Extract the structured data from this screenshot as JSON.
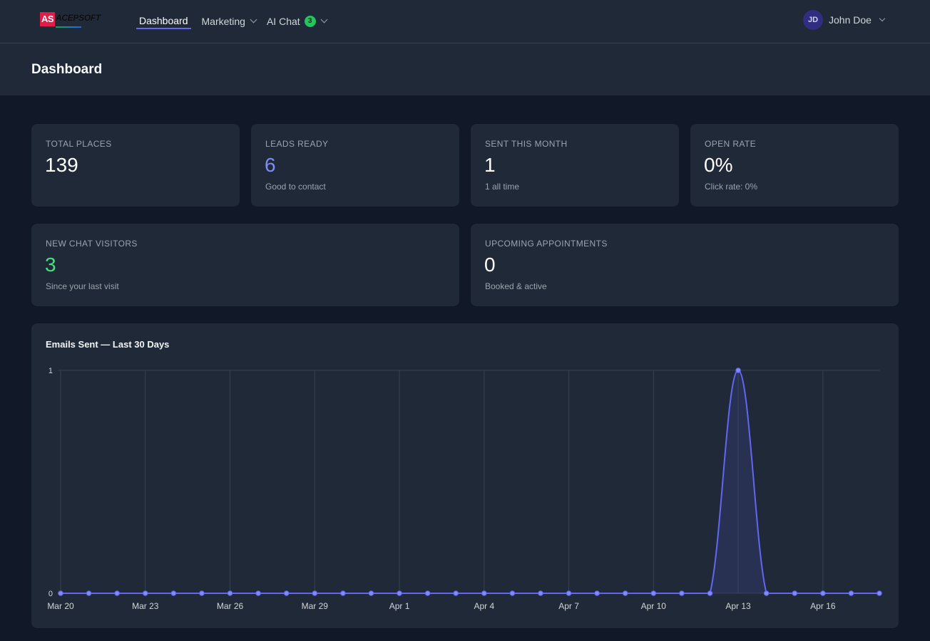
{
  "brand": {
    "logo_mark": "AS",
    "logo_text": "ACEPSOFT"
  },
  "nav": {
    "dashboard": "Dashboard",
    "marketing": "Marketing",
    "ai_chat": "AI Chat",
    "ai_chat_badge": "3"
  },
  "user": {
    "initials": "JD",
    "name": "John Doe"
  },
  "page": {
    "title": "Dashboard"
  },
  "stats": {
    "total_places": {
      "label": "TOTAL PLACES",
      "value": "139"
    },
    "leads_ready": {
      "label": "LEADS READY",
      "value": "6",
      "sub": "Good to contact"
    },
    "sent_this_month": {
      "label": "SENT THIS MONTH",
      "value": "1",
      "sub": "1 all time"
    },
    "open_rate": {
      "label": "OPEN RATE",
      "value": "0%",
      "sub": "Click rate: 0%"
    },
    "new_chat_visitors": {
      "label": "NEW CHAT VISITORS",
      "value": "3",
      "sub": "Since your last visit"
    },
    "upcoming_appointments": {
      "label": "UPCOMING APPOINTMENTS",
      "value": "0",
      "sub": "Booked & active"
    }
  },
  "colors": {
    "accent": "#6366f1",
    "leads_value": "#818cf8",
    "visitors_value": "#4ade80",
    "line": "#6366f1"
  },
  "chart_data": {
    "type": "area",
    "title": "Emails Sent — Last 30 Days",
    "xlabel": "",
    "ylabel": "",
    "ylim": [
      0,
      1
    ],
    "y_ticks": [
      "0",
      "1"
    ],
    "x": [
      "Mar 20",
      "Mar 21",
      "Mar 22",
      "Mar 23",
      "Mar 24",
      "Mar 25",
      "Mar 26",
      "Mar 27",
      "Mar 28",
      "Mar 29",
      "Mar 30",
      "Mar 31",
      "Apr 1",
      "Apr 2",
      "Apr 3",
      "Apr 4",
      "Apr 5",
      "Apr 6",
      "Apr 7",
      "Apr 8",
      "Apr 9",
      "Apr 10",
      "Apr 11",
      "Apr 12",
      "Apr 13",
      "Apr 14",
      "Apr 15",
      "Apr 16",
      "Apr 17",
      "Apr 18"
    ],
    "x_tick_labels": [
      "Mar 20",
      "Mar 23",
      "Mar 26",
      "Mar 29",
      "Apr 1",
      "Apr 4",
      "Apr 7",
      "Apr 10",
      "Apr 13",
      "Apr 16"
    ],
    "series": [
      {
        "values": [
          0,
          0,
          0,
          0,
          0,
          0,
          0,
          0,
          0,
          0,
          0,
          0,
          0,
          0,
          0,
          0,
          0,
          0,
          0,
          0,
          0,
          0,
          0,
          0,
          1,
          0,
          0,
          0,
          0,
          0
        ]
      }
    ],
    "grid": true,
    "legend": "none"
  }
}
